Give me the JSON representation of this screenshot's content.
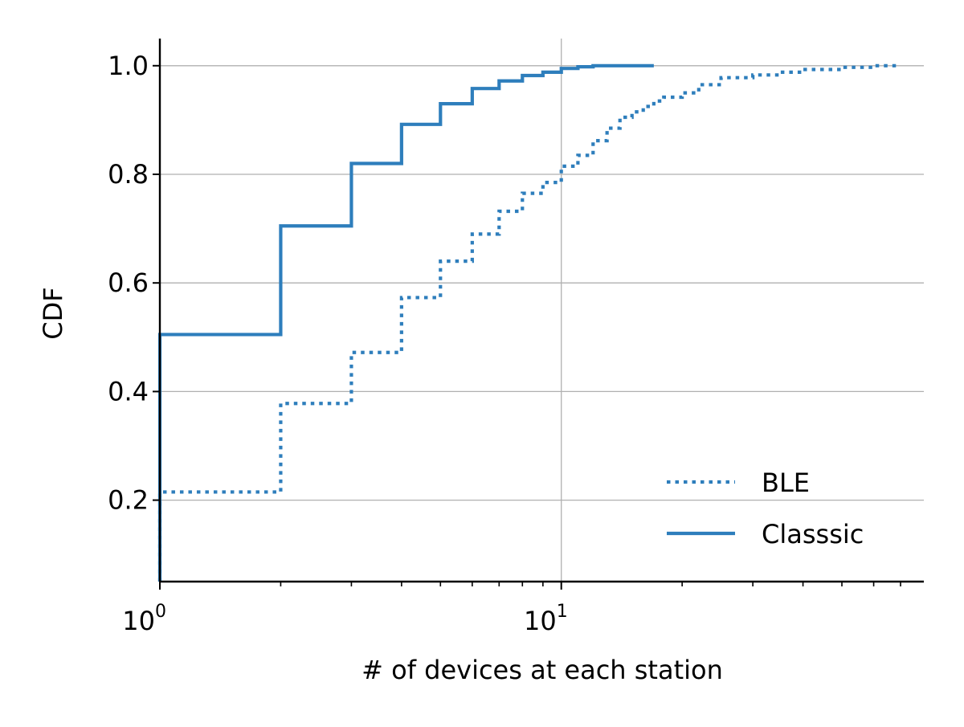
{
  "chart_data": {
    "type": "line",
    "title": "",
    "xlabel": "# of devices at each station",
    "ylabel": "CDF",
    "xscale": "log",
    "xlim": [
      1,
      80
    ],
    "ylim": [
      0.05,
      1.05
    ],
    "x_ticks": [
      {
        "value": 1,
        "base": "10",
        "exp": "0"
      },
      {
        "value": 10,
        "base": "10",
        "exp": "1"
      }
    ],
    "y_ticks": [
      {
        "value": 0.2,
        "label": "0.2"
      },
      {
        "value": 0.4,
        "label": "0.4"
      },
      {
        "value": 0.6,
        "label": "0.6"
      },
      {
        "value": 0.8,
        "label": "0.8"
      },
      {
        "value": 1.0,
        "label": "1.0"
      }
    ],
    "grid": true,
    "legend_position": "lower-right",
    "color": "#2e7ebc",
    "series": [
      {
        "name": "BLE",
        "style": "dotted",
        "x": [
          1,
          2,
          3,
          4,
          5,
          6,
          7,
          8,
          9,
          10,
          11,
          12,
          13,
          14,
          15,
          16,
          17,
          18,
          20,
          22,
          25,
          30,
          35,
          40,
          50,
          60,
          70
        ],
        "y": [
          0.215,
          0.378,
          0.472,
          0.573,
          0.64,
          0.69,
          0.732,
          0.765,
          0.785,
          0.815,
          0.835,
          0.862,
          0.885,
          0.905,
          0.915,
          0.925,
          0.935,
          0.942,
          0.95,
          0.965,
          0.978,
          0.983,
          0.988,
          0.993,
          0.997,
          1.0,
          1.0
        ]
      },
      {
        "name": "Classsic",
        "style": "solid",
        "x": [
          1,
          2,
          3,
          4,
          5,
          6,
          7,
          8,
          9,
          10,
          11,
          12,
          14,
          17
        ],
        "y": [
          0.505,
          0.705,
          0.82,
          0.892,
          0.93,
          0.958,
          0.972,
          0.982,
          0.988,
          0.995,
          0.998,
          1.0,
          1.0,
          1.0
        ]
      }
    ]
  }
}
